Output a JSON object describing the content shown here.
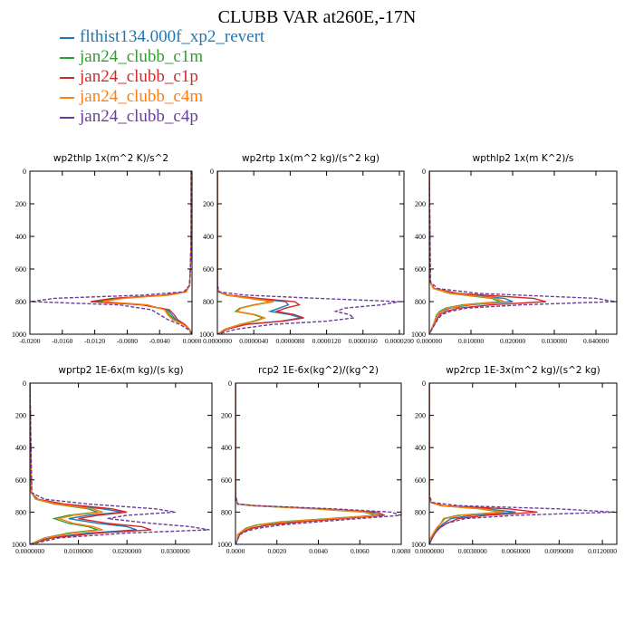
{
  "title": "CLUBB VAR at260E,-17N",
  "legend": [
    {
      "name": "flthist134.000f_xp2_revert",
      "color": "#1f77b4"
    },
    {
      "name": "jan24_clubb_c1m",
      "color": "#2ca02c"
    },
    {
      "name": "jan24_clubb_c1p",
      "color": "#d62728"
    },
    {
      "name": "jan24_clubb_c4m",
      "color": "#ff7f0e"
    },
    {
      "name": "jan24_clubb_c4p",
      "color": "#6a3d9a"
    }
  ],
  "chart_data": [
    {
      "type": "line",
      "title": "wp2thlp  1x(m^2 K)/s^2",
      "xlim": [
        -0.02,
        0.0
      ],
      "ylim": [
        1000,
        0
      ],
      "xticks": [
        -0.02,
        -0.016,
        -0.012,
        -0.008,
        -0.004,
        0.0
      ],
      "xtick_labels": [
        "-0.0200",
        "-0.0160",
        "-0.0120",
        "-0.0080",
        "-0.0040",
        "0.0000"
      ],
      "yticks": [
        0,
        200,
        400,
        600,
        800,
        1000
      ],
      "ytick_labels": [
        "0",
        "200",
        "400",
        "600",
        "800",
        "1000"
      ],
      "y": [
        0,
        200,
        400,
        600,
        700,
        740,
        760,
        780,
        800,
        820,
        850,
        880,
        910,
        940,
        970,
        1000
      ],
      "series": [
        {
          "name": "flthist134.000f_xp2_revert",
          "values": [
            -0.0001,
            -0.0001,
            -0.0001,
            -0.0002,
            -0.0003,
            -0.0008,
            -0.0035,
            -0.0095,
            -0.012,
            -0.006,
            -0.003,
            -0.0025,
            -0.002,
            -0.001,
            -0.0003,
            0.0
          ]
        },
        {
          "name": "jan24_clubb_c1m",
          "values": [
            -0.0001,
            -0.0001,
            -0.0001,
            -0.0002,
            -0.0003,
            -0.0008,
            -0.003,
            -0.009,
            -0.0115,
            -0.006,
            -0.0032,
            -0.0028,
            -0.0022,
            -0.001,
            -0.0003,
            0.0
          ]
        },
        {
          "name": "jan24_clubb_c1p",
          "values": [
            -0.0001,
            -0.0001,
            -0.0001,
            -0.0002,
            -0.0003,
            -0.0008,
            -0.0032,
            -0.0098,
            -0.0125,
            -0.0062,
            -0.0028,
            -0.0022,
            -0.0018,
            -0.0009,
            -0.0003,
            0.0
          ]
        },
        {
          "name": "jan24_clubb_c4m",
          "values": [
            -0.0001,
            -0.0001,
            -0.0001,
            -0.0002,
            -0.0003,
            -0.0007,
            -0.0028,
            -0.0085,
            -0.011,
            -0.0055,
            -0.0034,
            -0.003,
            -0.0024,
            -0.0011,
            -0.0003,
            0.0
          ]
        },
        {
          "name": "jan24_clubb_c4p",
          "values": [
            -0.0001,
            -0.0001,
            -0.0001,
            -0.0002,
            -0.0003,
            -0.001,
            -0.006,
            -0.017,
            -0.0198,
            -0.009,
            -0.005,
            -0.004,
            -0.003,
            -0.0015,
            -0.0005,
            0.0
          ]
        }
      ]
    },
    {
      "type": "line",
      "title": "wp2rtp  1x(m^2 kg)/(s^2 kg)",
      "xlim": [
        0.0,
        2.05e-05
      ],
      "ylim": [
        1000,
        0
      ],
      "xticks": [
        0.0,
        4e-06,
        8e-06,
        1.2e-05,
        1.6e-05,
        2e-05
      ],
      "xtick_labels": [
        "0.0000000",
        "0.0000040",
        "0.0000080",
        "0.0000120",
        "0.0000160",
        "0.0000200"
      ],
      "yticks": [
        0,
        200,
        400,
        600,
        800,
        1000
      ],
      "ytick_labels": [
        "0",
        "200",
        "400",
        "600",
        "800",
        "1000"
      ],
      "y": [
        0,
        700,
        740,
        760,
        780,
        800,
        820,
        840,
        860,
        880,
        900,
        920,
        940,
        970,
        1000
      ],
      "series": [
        {
          "name": "flthist134.000f_xp2_revert",
          "values": [
            0.0,
            0.0,
            1e-07,
            1e-06,
            4e-06,
            7.5e-06,
            7.8e-06,
            6.8e-06,
            5.8e-06,
            8e-06,
            9.2e-06,
            7e-06,
            3e-06,
            1e-06,
            0.0
          ]
        },
        {
          "name": "jan24_clubb_c1m",
          "values": [
            0.0,
            0.0,
            1e-07,
            1e-06,
            3.5e-06,
            6e-06,
            4e-06,
            2.5e-06,
            2e-06,
            4e-06,
            5e-06,
            4e-06,
            2.5e-06,
            8e-07,
            0.0
          ]
        },
        {
          "name": "jan24_clubb_c1p",
          "values": [
            0.0,
            0.0,
            1e-07,
            1.2e-06,
            4.5e-06,
            8.5e-06,
            9e-06,
            7.5e-06,
            6.5e-06,
            8.5e-06,
            9.5e-06,
            7.2e-06,
            3.2e-06,
            1e-06,
            0.0
          ]
        },
        {
          "name": "jan24_clubb_c4m",
          "values": [
            0.0,
            0.0,
            1e-07,
            1e-06,
            3.6e-06,
            6.2e-06,
            4.2e-06,
            2.6e-06,
            2.2e-06,
            4.2e-06,
            5.2e-06,
            4.2e-06,
            2.6e-06,
            8e-07,
            0.0
          ]
        },
        {
          "name": "jan24_clubb_c4p",
          "values": [
            0.0,
            0.0,
            2e-07,
            3e-06,
            1.1e-05,
            2e-05,
            1.8e-05,
            1.4e-05,
            1.3e-05,
            1.45e-05,
            1.5e-05,
            1.2e-05,
            6e-06,
            2e-06,
            0.0
          ]
        }
      ]
    },
    {
      "type": "line",
      "title": "wpthlp2  1x(m K^2)/s",
      "xlim": [
        0.0,
        0.045
      ],
      "ylim": [
        1000,
        0
      ],
      "xticks": [
        0.0,
        0.01,
        0.02,
        0.03,
        0.04
      ],
      "xtick_labels": [
        "0.000000",
        "0.010000",
        "0.020000",
        "0.030000",
        "0.040000"
      ],
      "yticks": [
        0,
        200,
        400,
        600,
        800,
        1000
      ],
      "ytick_labels": [
        "0",
        "200",
        "400",
        "600",
        "800",
        "1000"
      ],
      "y": [
        0,
        680,
        720,
        750,
        780,
        800,
        820,
        840,
        860,
        880,
        910,
        940,
        970,
        1000
      ],
      "series": [
        {
          "name": "flthist134.000f_xp2_revert",
          "values": [
            0.0,
            0.0002,
            0.001,
            0.006,
            0.018,
            0.02,
            0.01,
            0.005,
            0.003,
            0.002,
            0.0015,
            0.001,
            0.0005,
            0.0
          ]
        },
        {
          "name": "jan24_clubb_c1m",
          "values": [
            0.0,
            0.0002,
            0.001,
            0.005,
            0.015,
            0.017,
            0.008,
            0.004,
            0.0025,
            0.0018,
            0.0014,
            0.001,
            0.0005,
            0.0
          ]
        },
        {
          "name": "jan24_clubb_c1p",
          "values": [
            0.0,
            0.0002,
            0.0012,
            0.007,
            0.025,
            0.028,
            0.015,
            0.007,
            0.004,
            0.0025,
            0.0018,
            0.0012,
            0.0006,
            0.0
          ]
        },
        {
          "name": "jan24_clubb_c4m",
          "values": [
            0.0,
            0.0002,
            0.001,
            0.0055,
            0.016,
            0.018,
            0.009,
            0.0045,
            0.0028,
            0.0019,
            0.0015,
            0.001,
            0.0005,
            0.0
          ]
        },
        {
          "name": "jan24_clubb_c4p",
          "values": [
            0.0,
            0.0003,
            0.002,
            0.012,
            0.04,
            0.0445,
            0.022,
            0.009,
            0.005,
            0.003,
            0.002,
            0.0013,
            0.0006,
            0.0
          ]
        }
      ]
    },
    {
      "type": "line",
      "title": "wprtp2  1E-6x(m kg)/(s kg)",
      "xlim": [
        0.0,
        0.0375
      ],
      "ylim": [
        1000,
        0
      ],
      "xticks": [
        0.0,
        0.01,
        0.02,
        0.03
      ],
      "xtick_labels": [
        "0.0000000",
        "0.0100000",
        "0.0200000",
        "0.0300000"
      ],
      "yticks": [
        0,
        200,
        400,
        600,
        800,
        1000
      ],
      "ytick_labels": [
        "0",
        "200",
        "400",
        "600",
        "800",
        "1000"
      ],
      "y": [
        0,
        680,
        720,
        750,
        780,
        800,
        820,
        840,
        870,
        890,
        910,
        930,
        960,
        1000
      ],
      "series": [
        {
          "name": "flthist134.000f_xp2_revert",
          "values": [
            0.0,
            0.0003,
            0.0015,
            0.006,
            0.015,
            0.019,
            0.012,
            0.008,
            0.014,
            0.02,
            0.022,
            0.012,
            0.004,
            0.0
          ]
        },
        {
          "name": "jan24_clubb_c1m",
          "values": [
            0.0,
            0.0003,
            0.0012,
            0.005,
            0.012,
            0.014,
            0.008,
            0.005,
            0.008,
            0.012,
            0.014,
            0.008,
            0.003,
            0.0
          ]
        },
        {
          "name": "jan24_clubb_c1p",
          "values": [
            0.0,
            0.0003,
            0.0016,
            0.007,
            0.017,
            0.02,
            0.014,
            0.01,
            0.016,
            0.023,
            0.025,
            0.014,
            0.0045,
            0.0
          ]
        },
        {
          "name": "jan24_clubb_c4m",
          "values": [
            0.0,
            0.0003,
            0.0013,
            0.0055,
            0.013,
            0.015,
            0.009,
            0.006,
            0.009,
            0.013,
            0.015,
            0.009,
            0.0032,
            0.0
          ]
        },
        {
          "name": "jan24_clubb_c4p",
          "values": [
            0.0,
            0.0004,
            0.003,
            0.012,
            0.026,
            0.03,
            0.02,
            0.016,
            0.025,
            0.033,
            0.037,
            0.02,
            0.006,
            0.0
          ]
        }
      ]
    },
    {
      "type": "line",
      "title": "rcp2  1E-6x(kg^2)/(kg^2)",
      "xlim": [
        0.0,
        0.008
      ],
      "ylim": [
        1000,
        0
      ],
      "xticks": [
        0.0,
        0.002,
        0.004,
        0.006,
        0.008
      ],
      "xtick_labels": [
        "0.0000",
        "0.0020",
        "0.0040",
        "0.0060",
        "0.0080"
      ],
      "yticks": [
        0,
        200,
        400,
        600,
        800,
        1000
      ],
      "ytick_labels": [
        "0",
        "200",
        "400",
        "600",
        "800",
        "1000"
      ],
      "y": [
        0,
        700,
        750,
        760,
        780,
        800,
        820,
        840,
        860,
        880,
        900,
        920,
        940,
        970,
        1000
      ],
      "series": [
        {
          "name": "flthist134.000f_xp2_revert",
          "values": [
            0.0,
            0.0,
            0.0001,
            0.0008,
            0.004,
            0.0065,
            0.007,
            0.005,
            0.003,
            0.0015,
            0.0008,
            0.0004,
            0.0002,
            0.0001,
            0.0
          ]
        },
        {
          "name": "jan24_clubb_c1m",
          "values": [
            0.0,
            0.0,
            0.0001,
            0.0008,
            0.0038,
            0.0062,
            0.0068,
            0.0045,
            0.0022,
            0.001,
            0.0005,
            0.0003,
            0.0001,
            0.0001,
            0.0
          ]
        },
        {
          "name": "jan24_clubb_c1p",
          "values": [
            0.0,
            0.0,
            0.0001,
            0.0009,
            0.0042,
            0.0068,
            0.0072,
            0.0052,
            0.0032,
            0.0016,
            0.0008,
            0.0004,
            0.0002,
            0.0001,
            0.0
          ]
        },
        {
          "name": "jan24_clubb_c4m",
          "values": [
            0.0,
            0.0,
            0.0001,
            0.0008,
            0.0039,
            0.0063,
            0.0069,
            0.0047,
            0.0024,
            0.0011,
            0.0006,
            0.0003,
            0.0001,
            0.0001,
            0.0
          ]
        },
        {
          "name": "jan24_clubb_c4p",
          "values": [
            0.0,
            0.0,
            0.0001,
            0.001,
            0.0048,
            0.0075,
            0.008,
            0.006,
            0.004,
            0.0022,
            0.0011,
            0.0005,
            0.0002,
            0.0001,
            0.0
          ]
        }
      ]
    },
    {
      "type": "line",
      "title": "wp2rcp  1E-3x(m^2 kg)/(s^2 kg)",
      "xlim": [
        0.0,
        0.013
      ],
      "ylim": [
        1000,
        0
      ],
      "xticks": [
        0.0,
        0.003,
        0.006,
        0.009,
        0.012
      ],
      "xtick_labels": [
        "0.0000000",
        "0.0030000",
        "0.0060000",
        "0.0090000",
        "0.0120000"
      ],
      "yticks": [
        0,
        200,
        400,
        600,
        800,
        1000
      ],
      "ytick_labels": [
        "0",
        "200",
        "400",
        "600",
        "800",
        "1000"
      ],
      "y": [
        0,
        700,
        740,
        760,
        780,
        800,
        820,
        840,
        870,
        900,
        930,
        960,
        1000
      ],
      "series": [
        {
          "name": "flthist134.000f_xp2_revert",
          "values": [
            0.0,
            0.0,
            0.0001,
            0.0008,
            0.004,
            0.006,
            0.003,
            0.0015,
            0.001,
            0.0006,
            0.0004,
            0.0002,
            0.0
          ]
        },
        {
          "name": "jan24_clubb_c1m",
          "values": [
            0.0,
            0.0,
            0.0001,
            0.0008,
            0.0035,
            0.005,
            0.002,
            0.001,
            0.0008,
            0.0005,
            0.0003,
            0.0001,
            0.0
          ]
        },
        {
          "name": "jan24_clubb_c1p",
          "values": [
            0.0,
            0.0,
            0.0001,
            0.001,
            0.0055,
            0.0075,
            0.004,
            0.002,
            0.0012,
            0.0007,
            0.0004,
            0.0002,
            0.0
          ]
        },
        {
          "name": "jan24_clubb_c4m",
          "values": [
            0.0,
            0.0,
            0.0001,
            0.0008,
            0.0037,
            0.0052,
            0.0022,
            0.0011,
            0.0008,
            0.0005,
            0.0003,
            0.0001,
            0.0
          ]
        },
        {
          "name": "jan24_clubb_c4p",
          "values": [
            0.0,
            0.0,
            0.0002,
            0.002,
            0.009,
            0.0128,
            0.006,
            0.0025,
            0.0012,
            0.0007,
            0.0004,
            0.0002,
            0.0
          ]
        }
      ]
    }
  ]
}
